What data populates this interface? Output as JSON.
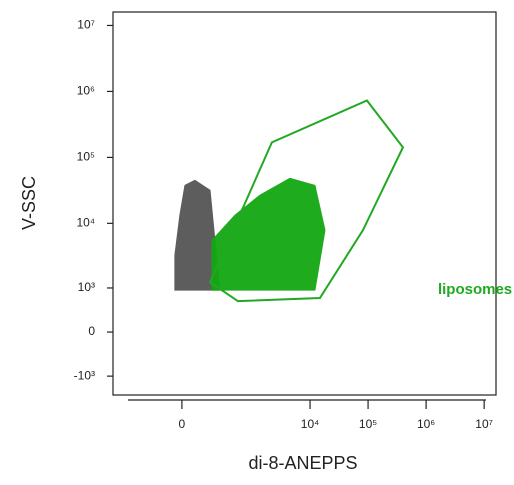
{
  "chart_data": {
    "type": "scatter",
    "xlabel": "di-8-ANEPPS",
    "ylabel": "V-SSC",
    "xscale": "biexponential",
    "yscale": "biexponential",
    "xlim": [
      -950,
      16000000
    ],
    "ylim": [
      -2000,
      16000000
    ],
    "xticks": [
      0,
      {
        "value": 10000,
        "label": "10⁴"
      },
      {
        "value": 100000,
        "label": "10⁵"
      },
      {
        "value": 1000000,
        "label": "10⁶"
      },
      {
        "value": 10000000,
        "label": "10⁷"
      }
    ],
    "yticks": [
      {
        "value": 10000000,
        "label": "10⁷"
      },
      {
        "value": 1000000,
        "label": "10⁶"
      },
      {
        "value": 100000,
        "label": "10⁵"
      },
      {
        "value": 10000,
        "label": "10⁴"
      },
      {
        "value": 1000,
        "label": "10³"
      },
      0,
      {
        "value": -1000,
        "label": "-10³"
      }
    ],
    "populations": [
      {
        "color": "#555555",
        "x": [
          -35,
          -35,
          -10,
          15,
          67,
          169,
          213,
          267
        ],
        "y": [
          920,
          3280,
          13300,
          37700,
          44900,
          31700,
          5530,
          920
        ]
      },
      {
        "color": "#12a812",
        "x": [
          186,
          186,
          500,
          1360,
          4500,
          12150,
          18100,
          12150
        ],
        "y": [
          920,
          5530,
          13300,
          26600,
          48200,
          37700,
          7870,
          920
        ]
      }
    ],
    "gates": [
      {
        "name": "liposomes",
        "color": "#22a822",
        "x": [
          169,
          2200,
          95600,
          399000,
          81600,
          14800,
          566
        ],
        "y": [
          1240,
          169000,
          729000,
          142000,
          7870,
          670,
          585
        ]
      }
    ]
  }
}
